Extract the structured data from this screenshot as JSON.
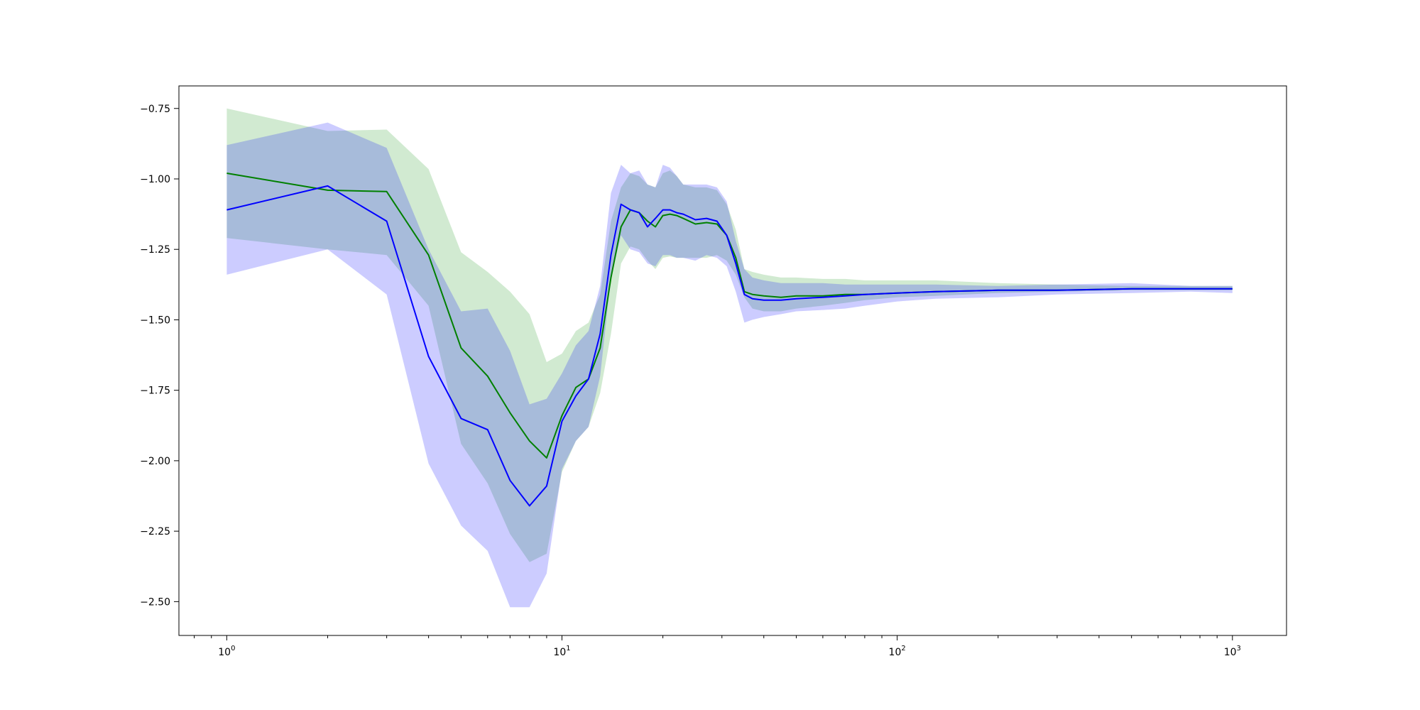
{
  "chart_data": {
    "type": "line",
    "title": "",
    "xlabel": "",
    "ylabel": "",
    "x_scale": "log",
    "xlim": [
      0.72,
      1450
    ],
    "ylim": [
      -2.62,
      -0.67
    ],
    "grid": false,
    "legend": "none",
    "x_ticks": [
      {
        "value": 1,
        "base": "10",
        "exp": "0"
      },
      {
        "value": 10,
        "base": "10",
        "exp": "1"
      },
      {
        "value": 100,
        "base": "10",
        "exp": "2"
      },
      {
        "value": 1000,
        "base": "10",
        "exp": "3"
      }
    ],
    "y_ticks": [
      {
        "value": -0.75,
        "label": "−0.75"
      },
      {
        "value": -1.0,
        "label": "−1.00"
      },
      {
        "value": -1.25,
        "label": "−1.25"
      },
      {
        "value": -1.5,
        "label": "−1.50"
      },
      {
        "value": -1.75,
        "label": "−1.75"
      },
      {
        "value": -2.0,
        "label": "−2.00"
      },
      {
        "value": -2.25,
        "label": "−2.25"
      },
      {
        "value": -2.5,
        "label": "−2.50"
      }
    ],
    "series": [
      {
        "color": "#008000",
        "band_color": "#2ca02c",
        "band_opacity": 0.22,
        "x": [
          1,
          2,
          3,
          4,
          5,
          6,
          7,
          8,
          9,
          10,
          11,
          12,
          13,
          14,
          15,
          16,
          17,
          18,
          19,
          20,
          21,
          22,
          23,
          25,
          27,
          29,
          31,
          33,
          35,
          37,
          40,
          45,
          50,
          60,
          70,
          80,
          100,
          130,
          200,
          300,
          500,
          750,
          1000
        ],
        "y": [
          -0.98,
          -1.04,
          -1.045,
          -1.27,
          -1.6,
          -1.7,
          -1.83,
          -1.93,
          -1.99,
          -1.84,
          -1.74,
          -1.71,
          -1.6,
          -1.35,
          -1.17,
          -1.11,
          -1.12,
          -1.15,
          -1.17,
          -1.13,
          -1.125,
          -1.13,
          -1.14,
          -1.16,
          -1.155,
          -1.16,
          -1.2,
          -1.28,
          -1.4,
          -1.41,
          -1.415,
          -1.42,
          -1.415,
          -1.415,
          -1.41,
          -1.41,
          -1.405,
          -1.4,
          -1.395,
          -1.395,
          -1.39,
          -1.39,
          -1.39
        ],
        "lower": [
          -1.21,
          -1.25,
          -1.27,
          -1.45,
          -1.94,
          -2.08,
          -2.26,
          -2.36,
          -2.33,
          -2.04,
          -1.93,
          -1.88,
          -1.76,
          -1.55,
          -1.3,
          -1.24,
          -1.25,
          -1.29,
          -1.32,
          -1.28,
          -1.275,
          -1.28,
          -1.28,
          -1.28,
          -1.28,
          -1.27,
          -1.29,
          -1.34,
          -1.42,
          -1.46,
          -1.47,
          -1.47,
          -1.46,
          -1.45,
          -1.44,
          -1.43,
          -1.42,
          -1.415,
          -1.405,
          -1.4,
          -1.395,
          -1.395,
          -1.395
        ],
        "upper": [
          -0.75,
          -0.83,
          -0.825,
          -0.965,
          -1.26,
          -1.33,
          -1.4,
          -1.48,
          -1.65,
          -1.62,
          -1.54,
          -1.51,
          -1.41,
          -1.15,
          -1.03,
          -0.98,
          -0.99,
          -1.02,
          -1.03,
          -0.98,
          -0.97,
          -0.99,
          -1.02,
          -1.03,
          -1.03,
          -1.04,
          -1.09,
          -1.18,
          -1.32,
          -1.33,
          -1.34,
          -1.35,
          -1.35,
          -1.355,
          -1.355,
          -1.36,
          -1.36,
          -1.36,
          -1.37,
          -1.375,
          -1.38,
          -1.38,
          -1.38
        ]
      },
      {
        "color": "#0000ff",
        "band_color": "#0000ff",
        "band_opacity": 0.2,
        "x": [
          1,
          2,
          3,
          4,
          5,
          6,
          7,
          8,
          9,
          10,
          11,
          12,
          13,
          14,
          15,
          16,
          17,
          18,
          19,
          20,
          21,
          22,
          23,
          25,
          27,
          29,
          31,
          33,
          35,
          37,
          40,
          45,
          50,
          60,
          70,
          80,
          100,
          130,
          200,
          300,
          500,
          750,
          1000
        ],
        "y": [
          -1.11,
          -1.025,
          -1.15,
          -1.63,
          -1.85,
          -1.89,
          -2.07,
          -2.16,
          -2.09,
          -1.86,
          -1.77,
          -1.71,
          -1.55,
          -1.27,
          -1.09,
          -1.11,
          -1.12,
          -1.17,
          -1.14,
          -1.11,
          -1.11,
          -1.12,
          -1.125,
          -1.145,
          -1.14,
          -1.15,
          -1.2,
          -1.3,
          -1.41,
          -1.425,
          -1.43,
          -1.43,
          -1.425,
          -1.42,
          -1.415,
          -1.41,
          -1.405,
          -1.4,
          -1.395,
          -1.395,
          -1.39,
          -1.39,
          -1.39
        ],
        "lower": [
          -1.34,
          -1.25,
          -1.41,
          -2.01,
          -2.23,
          -2.32,
          -2.52,
          -2.52,
          -2.4,
          -2.03,
          -1.93,
          -1.88,
          -1.7,
          -1.35,
          -1.2,
          -1.25,
          -1.26,
          -1.3,
          -1.31,
          -1.27,
          -1.27,
          -1.28,
          -1.28,
          -1.29,
          -1.27,
          -1.28,
          -1.31,
          -1.4,
          -1.51,
          -1.5,
          -1.49,
          -1.48,
          -1.47,
          -1.465,
          -1.46,
          -1.45,
          -1.435,
          -1.425,
          -1.42,
          -1.41,
          -1.405,
          -1.4,
          -1.405
        ],
        "upper": [
          -0.88,
          -0.8,
          -0.89,
          -1.25,
          -1.47,
          -1.46,
          -1.61,
          -1.8,
          -1.78,
          -1.69,
          -1.59,
          -1.54,
          -1.38,
          -1.05,
          -0.95,
          -0.98,
          -0.97,
          -1.02,
          -1.03,
          -0.95,
          -0.96,
          -0.99,
          -1.02,
          -1.02,
          -1.02,
          -1.03,
          -1.08,
          -1.22,
          -1.32,
          -1.35,
          -1.36,
          -1.37,
          -1.37,
          -1.37,
          -1.375,
          -1.375,
          -1.375,
          -1.375,
          -1.38,
          -1.375,
          -1.37,
          -1.38,
          -1.38
        ]
      }
    ]
  }
}
